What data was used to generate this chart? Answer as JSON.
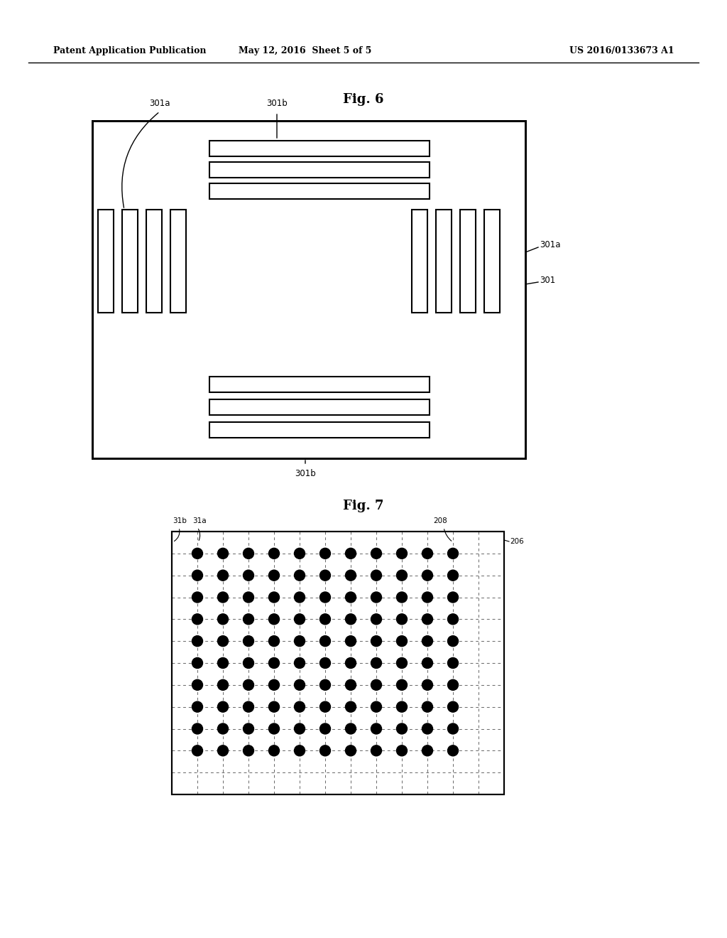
{
  "title_header": "Patent Application Publication",
  "title_date": "May 12, 2016  Sheet 5 of 5",
  "title_patent": "US 2016/0133673 A1",
  "fig6_title": "Fig. 6",
  "fig7_title": "Fig. 7",
  "bg_color": "#ffffff",
  "line_color": "#000000"
}
